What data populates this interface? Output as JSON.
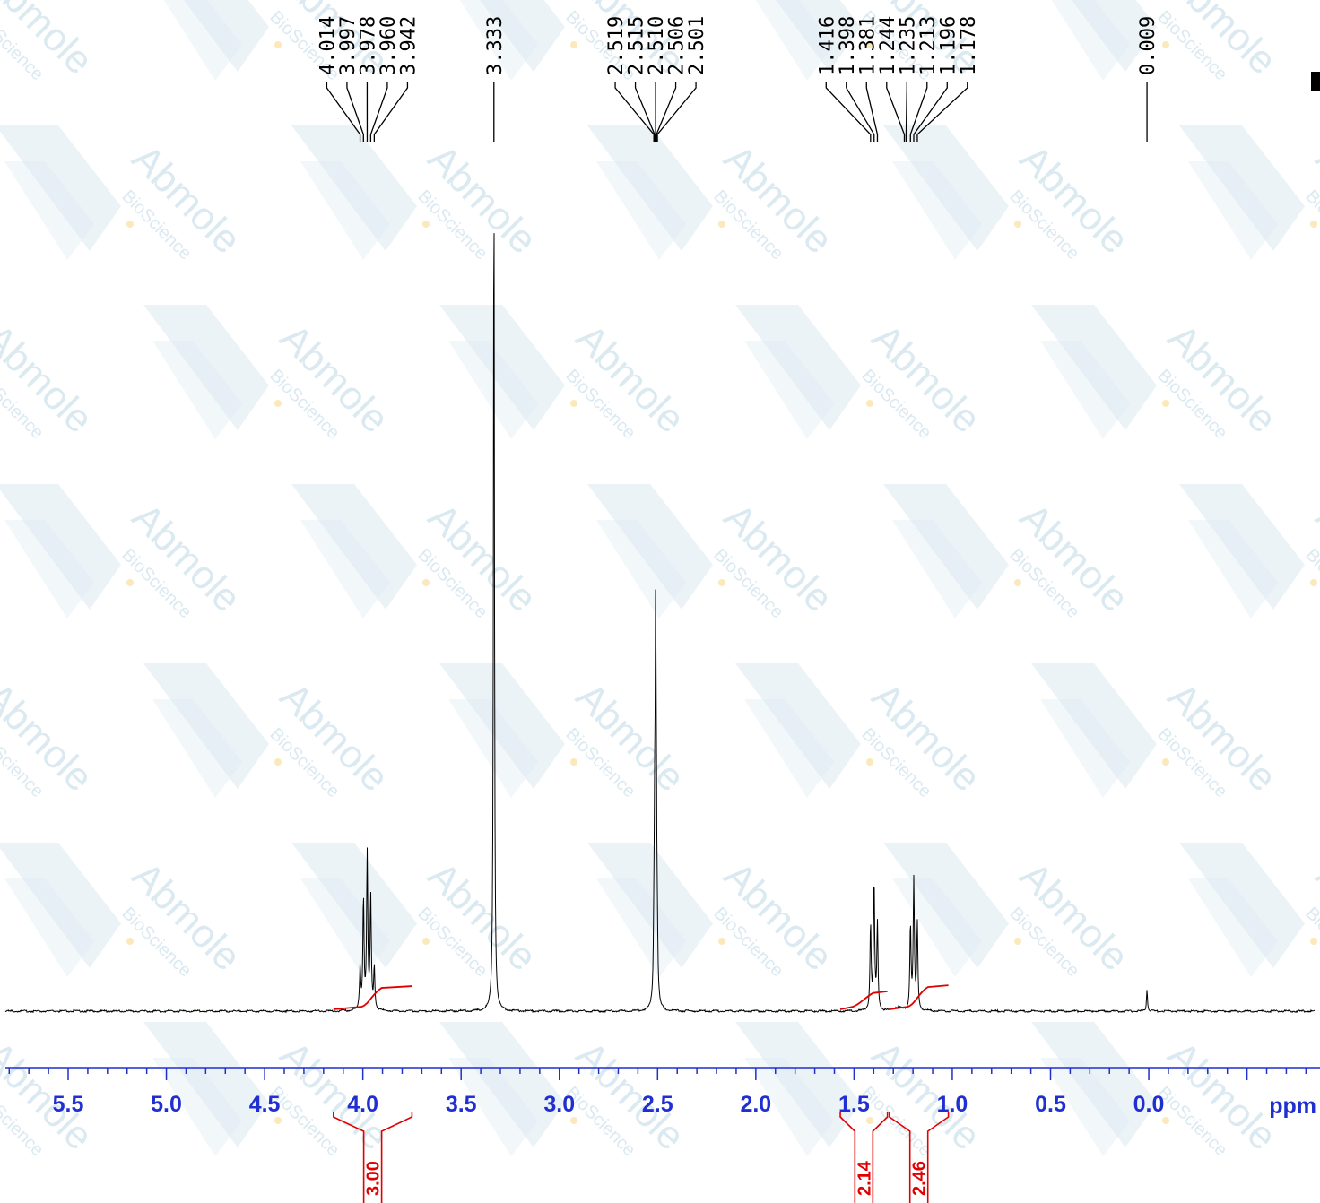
{
  "chart_data": {
    "type": "line",
    "xlabel": "ppm",
    "xlim": [
      5.8,
      -0.8
    ],
    "x_reversed": true,
    "ticks": [
      "5.5",
      "5.0",
      "4.5",
      "4.0",
      "3.5",
      "3.0",
      "2.5",
      "2.0",
      "1.5",
      "1.0",
      "0.5",
      "0.0"
    ],
    "peak_groups": [
      {
        "labels": [
          "4.014",
          "3.997",
          "3.978",
          "3.960",
          "3.942"
        ],
        "shifts": [
          4.014,
          3.997,
          3.978,
          3.96,
          3.942
        ]
      },
      {
        "labels": [
          "3.333"
        ],
        "shifts": [
          3.333
        ]
      },
      {
        "labels": [
          "2.519",
          "2.515",
          "2.510",
          "2.506",
          "2.501"
        ],
        "shifts": [
          2.519,
          2.515,
          2.51,
          2.506,
          2.501
        ]
      },
      {
        "labels": [
          "1.416",
          "1.398",
          "1.381",
          "1.244",
          "1.235",
          "1.213",
          "1.196",
          "1.178"
        ],
        "shifts": [
          1.416,
          1.398,
          1.381,
          1.244,
          1.235,
          1.213,
          1.196,
          1.178
        ]
      },
      {
        "labels": [
          "0.009"
        ],
        "shifts": [
          0.009
        ]
      }
    ],
    "signals": [
      {
        "center": 3.978,
        "lines": [
          4.014,
          3.997,
          3.978,
          3.96,
          3.942
        ],
        "heights": [
          0.05,
          0.13,
          0.18,
          0.13,
          0.05
        ],
        "width": 0.0035
      },
      {
        "center": 3.333,
        "lines": [
          3.333
        ],
        "heights": [
          1.0
        ],
        "width": 0.003
      },
      {
        "center": 2.51,
        "lines": [
          2.519,
          2.515,
          2.51,
          2.506,
          2.501
        ],
        "heights": [
          0.05,
          0.15,
          0.4,
          0.15,
          0.05
        ],
        "width": 0.003
      },
      {
        "center": 1.398,
        "lines": [
          1.416,
          1.398,
          1.381
        ],
        "heights": [
          0.1,
          0.15,
          0.1
        ],
        "width": 0.0035
      },
      {
        "center": 1.196,
        "lines": [
          1.213,
          1.196,
          1.178
        ],
        "heights": [
          0.1,
          0.15,
          0.1
        ],
        "width": 0.0035
      },
      {
        "center": 0.009,
        "lines": [
          0.009
        ],
        "heights": [
          0.026
        ],
        "width": 0.003
      }
    ],
    "integrals": [
      {
        "label": "3.00",
        "from": 4.15,
        "to": 3.75,
        "rise": 0.025
      },
      {
        "label": "2.14",
        "from": 1.57,
        "to": 1.33,
        "rise": 0.019
      },
      {
        "label": "2.46",
        "from": 1.32,
        "to": 1.02,
        "rise": 0.026
      }
    ],
    "colors": {
      "spectrum": "#000000",
      "axis": "#1f2fd1",
      "integral": "#e00000",
      "watermark": "#dbe9f1"
    }
  },
  "watermark": {
    "brand": "Abmole",
    "sub": "BioScience"
  }
}
